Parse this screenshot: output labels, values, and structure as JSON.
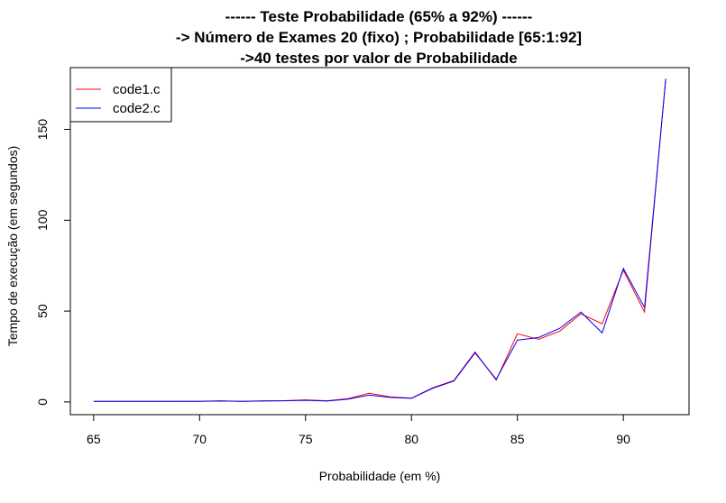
{
  "chart_data": {
    "type": "line",
    "title": [
      "------ Teste Probabilidade (65% a 92%) ------",
      "-> Número de Exames 20 (fixo) ; Probabilidade [65:1:92]",
      "->40 testes por valor de Probabilidade"
    ],
    "xlabel": "Probabilidade (em %)",
    "ylabel": "Tempo de execução (em segundos)",
    "xlim": [
      63.9,
      93.1
    ],
    "ylim": [
      -7,
      184
    ],
    "x_ticks": [
      65,
      70,
      75,
      80,
      85,
      90
    ],
    "y_ticks": [
      0,
      50,
      100,
      150
    ],
    "x": [
      65,
      66,
      67,
      68,
      69,
      70,
      71,
      72,
      73,
      74,
      75,
      76,
      77,
      78,
      79,
      80,
      81,
      82,
      83,
      84,
      85,
      86,
      87,
      88,
      89,
      90,
      91,
      92
    ],
    "series": [
      {
        "name": "code1.c",
        "color": "#ff0000",
        "values": [
          0.3,
          0.3,
          0.3,
          0.3,
          0.3,
          0.4,
          0.6,
          0.3,
          0.6,
          0.7,
          1.1,
          0.6,
          1.8,
          4.8,
          2.8,
          2.1,
          7.8,
          11.8,
          27.5,
          12.0,
          37.5,
          34.5,
          39.0,
          48.5,
          43.0,
          72.5,
          49.5,
          178.0
        ]
      },
      {
        "name": "code2.c",
        "color": "#0000ff",
        "values": [
          0.3,
          0.3,
          0.3,
          0.3,
          0.3,
          0.3,
          0.5,
          0.3,
          0.5,
          0.6,
          0.9,
          0.5,
          1.5,
          3.8,
          2.5,
          2.0,
          7.5,
          11.5,
          27.0,
          12.5,
          34.0,
          35.5,
          40.5,
          49.5,
          38.0,
          73.5,
          52.0,
          177.5
        ]
      }
    ],
    "legend_position": "top-left",
    "grid": false
  }
}
